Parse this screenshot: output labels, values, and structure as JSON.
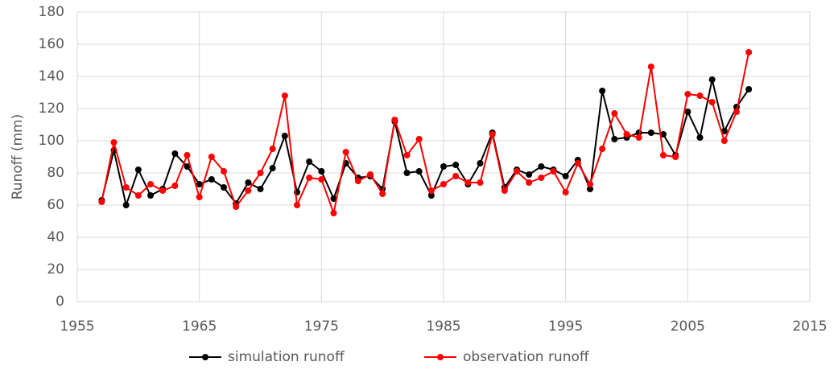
{
  "chart_data": {
    "type": "line",
    "y_label": "Runoff (mm)",
    "x": [
      1957,
      1958,
      1959,
      1960,
      1961,
      1962,
      1963,
      1964,
      1965,
      1966,
      1967,
      1968,
      1969,
      1970,
      1971,
      1972,
      1973,
      1974,
      1975,
      1976,
      1977,
      1978,
      1979,
      1980,
      1981,
      1982,
      1983,
      1984,
      1985,
      1986,
      1987,
      1988,
      1989,
      1990,
      1991,
      1992,
      1993,
      1994,
      1995,
      1996,
      1997,
      1998,
      1999,
      2000,
      2001,
      2002,
      2003,
      2004,
      2005,
      2006,
      2007,
      2008,
      2009,
      2010
    ],
    "series": [
      {
        "name": "simulation runoff",
        "color": "#000000",
        "values": [
          63,
          94,
          60,
          82,
          66,
          70,
          92,
          84,
          73,
          76,
          71,
          61,
          74,
          70,
          83,
          103,
          68,
          87,
          81,
          64,
          86,
          77,
          78,
          70,
          112,
          80,
          81,
          66,
          84,
          85,
          73,
          86,
          105,
          71,
          82,
          79,
          84,
          82,
          78,
          88,
          70,
          131,
          101,
          102,
          105,
          105,
          104,
          91,
          118,
          102,
          138,
          106,
          121,
          132
        ]
      },
      {
        "name": "observation runoff",
        "color": "#ff0000",
        "values": [
          62,
          99,
          71,
          66,
          73,
          69,
          72,
          91,
          65,
          90,
          81,
          59,
          69,
          80,
          95,
          128,
          60,
          77,
          76,
          55,
          93,
          75,
          79,
          67,
          113,
          91,
          101,
          69,
          73,
          78,
          74,
          74,
          104,
          69,
          81,
          74,
          77,
          81,
          68,
          86,
          73,
          95,
          117,
          104,
          102,
          146,
          91,
          90,
          129,
          128,
          124,
          100,
          118,
          155
        ]
      }
    ],
    "xlim": [
      1955,
      2015
    ],
    "xticks": [
      1955,
      1965,
      1975,
      1985,
      1995,
      2005,
      2015
    ],
    "ylim": [
      0,
      180
    ],
    "yticks": [
      0,
      20,
      40,
      60,
      80,
      100,
      120,
      140,
      160,
      180
    ],
    "grid": true,
    "legend": "bottom"
  }
}
